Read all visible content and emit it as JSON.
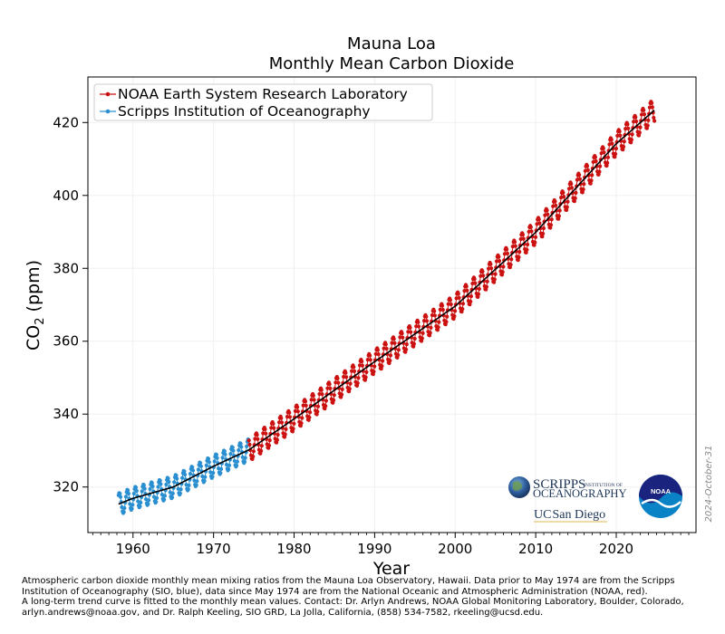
{
  "chart_data": {
    "type": "line",
    "title": "Mauna Loa",
    "subtitle": "Monthly Mean Carbon Dioxide",
    "xlabel": "Year",
    "ylabel_main": "CO",
    "ylabel_sub": "2",
    "ylabel_unit": " (ppm)",
    "xlim": [
      1954.4,
      2029.9
    ],
    "ylim": [
      307.5,
      432.5
    ],
    "x_ticks": [
      1960,
      1970,
      1980,
      1990,
      2000,
      2010,
      2020
    ],
    "y_ticks": [
      320,
      340,
      360,
      380,
      400,
      420
    ],
    "grid": true,
    "legend_placement": "upper-left",
    "series": [
      {
        "name": "NOAA Earth System Research Laboratory",
        "color": "#cc1111",
        "x_start": 1974.4,
        "x_end": 2024.8,
        "trend_anchors": [
          [
            1974.4,
            330.2
          ],
          [
            1980,
            338.7
          ],
          [
            1990,
            354.4
          ],
          [
            2000,
            369.6
          ],
          [
            2010,
            389.9
          ],
          [
            2020,
            414.2
          ],
          [
            2024.8,
            423.5
          ]
        ],
        "seasonal_amplitude_ppm": 3.2
      },
      {
        "name": "Scripps Institution of Oceanography",
        "color": "#2a8fd0",
        "x_start": 1958.2,
        "x_end": 1974.4,
        "trend_anchors": [
          [
            1958.2,
            315.3
          ],
          [
            1960,
            316.9
          ],
          [
            1965,
            320.0
          ],
          [
            1970,
            325.7
          ],
          [
            1974.4,
            330.2
          ]
        ],
        "seasonal_amplitude_ppm": 3.0
      }
    ],
    "trend_line": {
      "name": "long-term trend",
      "color": "#000000"
    }
  },
  "logos": {
    "scripps_line1": "SCRIPPS",
    "scripps_small": "INSTITUTION OF",
    "scripps_line2": "OCEANOGRAPHY",
    "ucsd_uc": "UC",
    "ucsd_name": "San Diego",
    "noaa_text": "NOAA"
  },
  "date_stamp": "2024-October-31",
  "footnote": "Atmospheric carbon dioxide monthly mean mixing ratios from the Mauna Loa Observatory, Hawaii.  Data prior to May 1974 are from the Scripps Institution of Oceanography (SIO, blue), data since May 1974 are from the National Oceanic and Atmospheric Administration (NOAA, red).\nA long-term trend curve is fitted to the monthly mean values.  Contact: Dr. Arlyn Andrews, NOAA Global Monitoring Laboratory, Boulder, Colorado, arlyn.andrews@noaa.gov, and Dr. Ralph Keeling, SIO GRD, La Jolla, California, (858) 534-7582, rkeeling@ucsd.edu."
}
